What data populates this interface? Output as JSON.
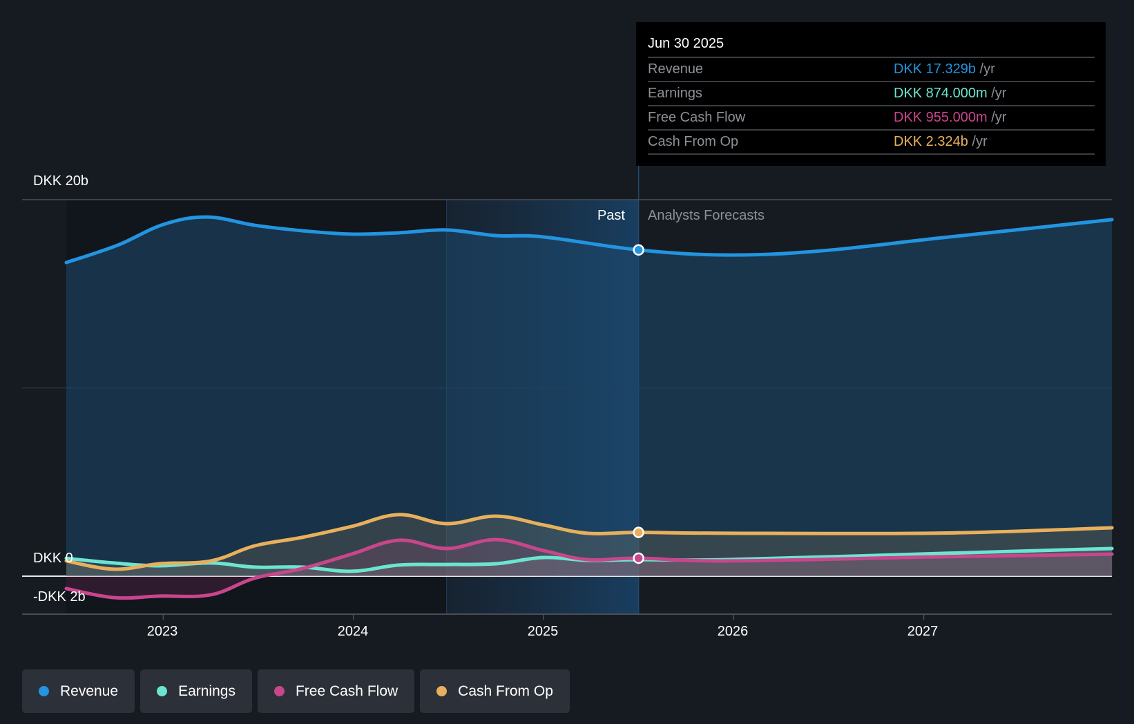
{
  "chart_data": {
    "type": "area",
    "currency": "DKK",
    "ylim": [
      -2,
      20
    ],
    "yticks": [
      {
        "value": 20,
        "label": "DKK 20b"
      },
      {
        "value": 0,
        "label": "DKK 0"
      },
      {
        "value": -2,
        "label": "-DKK 2b"
      }
    ],
    "gridlines": [
      20,
      10,
      0
    ],
    "xlim": [
      2022.49,
      2027.99
    ],
    "xticks": [
      {
        "value": 2023,
        "label": "2023"
      },
      {
        "value": 2024,
        "label": "2024"
      },
      {
        "value": 2025,
        "label": "2025"
      },
      {
        "value": 2026,
        "label": "2026"
      },
      {
        "value": 2027,
        "label": "2027"
      }
    ],
    "past_end": 2025.5,
    "highlight_start": 2024.49,
    "region_labels": {
      "past": "Past",
      "forecast": "Analysts Forecasts"
    },
    "series": [
      {
        "name": "Revenue",
        "color": "#2394df",
        "x": [
          2022.49,
          2022.76,
          2023.0,
          2023.23,
          2023.48,
          2023.73,
          2023.99,
          2024.24,
          2024.49,
          2024.75,
          2025.0,
          2025.5,
          2025.97,
          2026.46,
          2027.1,
          2027.99
        ],
        "values": [
          16.66,
          17.58,
          18.68,
          19.08,
          18.64,
          18.35,
          18.17,
          18.24,
          18.39,
          18.09,
          18.02,
          17.33,
          17.06,
          17.28,
          17.98,
          18.94
        ]
      },
      {
        "name": "Earnings",
        "color": "#6ce5d0",
        "x": [
          2022.49,
          2022.74,
          2022.98,
          2023.25,
          2023.48,
          2023.73,
          2023.99,
          2024.24,
          2024.49,
          2024.75,
          2025.0,
          2025.23,
          2025.5,
          2025.97,
          2027.1,
          2027.99
        ],
        "values": [
          0.95,
          0.7,
          0.55,
          0.7,
          0.48,
          0.48,
          0.26,
          0.59,
          0.62,
          0.66,
          0.99,
          0.84,
          0.874,
          0.88,
          1.21,
          1.47
        ]
      },
      {
        "name": "Free Cash Flow",
        "color": "#c8468c",
        "x": [
          2022.49,
          2022.74,
          2022.98,
          2023.25,
          2023.48,
          2023.73,
          2023.99,
          2024.24,
          2024.49,
          2024.75,
          2025.0,
          2025.23,
          2025.5,
          2025.97,
          2027.1,
          2027.99
        ],
        "values": [
          -0.66,
          -1.14,
          -1.06,
          -0.99,
          -0.11,
          0.4,
          1.17,
          1.91,
          1.47,
          1.94,
          1.36,
          0.88,
          0.955,
          0.81,
          1.03,
          1.17
        ]
      },
      {
        "name": "Cash From Op",
        "color": "#e8b05c",
        "x": [
          2022.49,
          2022.74,
          2022.98,
          2023.25,
          2023.48,
          2023.73,
          2023.99,
          2024.24,
          2024.49,
          2024.75,
          2025.0,
          2025.23,
          2025.5,
          2025.97,
          2027.1,
          2027.99
        ],
        "values": [
          0.81,
          0.37,
          0.66,
          0.81,
          1.61,
          2.06,
          2.64,
          3.27,
          2.79,
          3.19,
          2.72,
          2.28,
          2.324,
          2.28,
          2.29,
          2.57
        ]
      }
    ]
  },
  "tooltip": {
    "date": "Jun 30 2025",
    "rows": [
      {
        "name": "Revenue",
        "value": "DKK 17.329b",
        "unit": "/yr",
        "color": "#2394df"
      },
      {
        "name": "Earnings",
        "value": "DKK 874.000m",
        "unit": "/yr",
        "color": "#6ce5d0"
      },
      {
        "name": "Free Cash Flow",
        "value": "DKK 955.000m",
        "unit": "/yr",
        "color": "#c8468c"
      },
      {
        "name": "Cash From Op",
        "value": "DKK 2.324b",
        "unit": "/yr",
        "color": "#e8b05c"
      }
    ]
  },
  "legend": [
    {
      "label": "Revenue",
      "color": "#2394df"
    },
    {
      "label": "Earnings",
      "color": "#6ce5d0"
    },
    {
      "label": "Free Cash Flow",
      "color": "#c8468c"
    },
    {
      "label": "Cash From Op",
      "color": "#e8b05c"
    }
  ]
}
